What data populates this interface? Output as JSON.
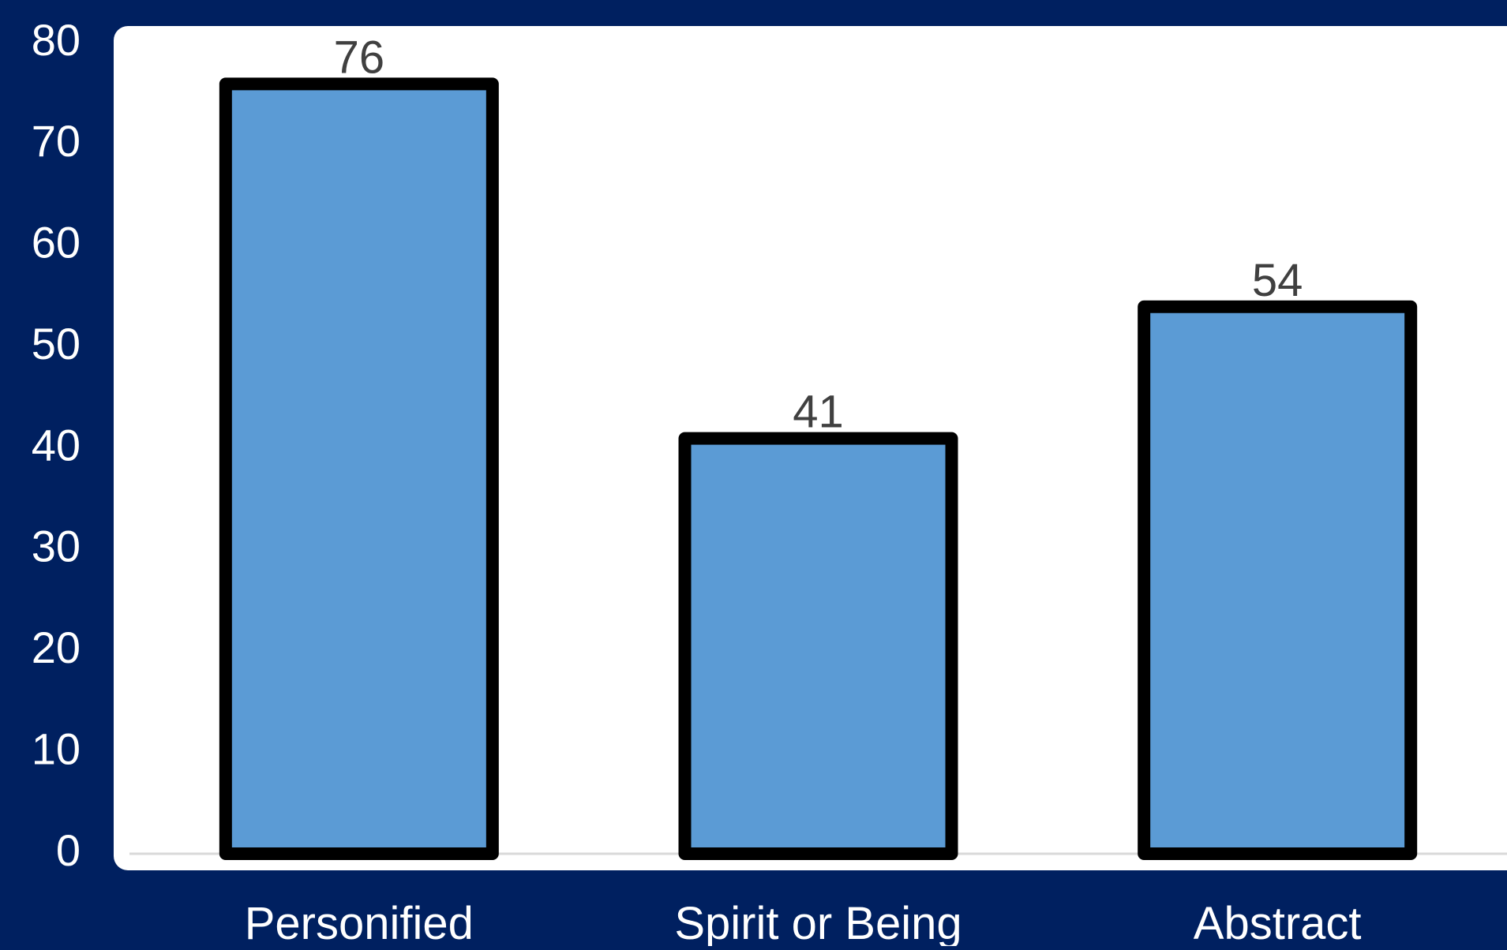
{
  "chart_data": {
    "type": "bar",
    "title": "",
    "xlabel": "",
    "ylabel": "",
    "categories": [
      "Personified",
      "Spirit or Being",
      "Abstract"
    ],
    "values": [
      76,
      41,
      54
    ],
    "data_labels": [
      "76",
      "41",
      "54"
    ],
    "ylim": [
      0,
      80
    ],
    "yticks": [
      0,
      10,
      20,
      30,
      40,
      50,
      60,
      70,
      80
    ],
    "ytick_labels": [
      "0",
      "10",
      "20",
      "30",
      "40",
      "50",
      "60",
      "70",
      "80"
    ],
    "grid": false,
    "legend": "none"
  },
  "colors": {
    "background": "#002060",
    "plot_area": "#FFFFFF",
    "bar_fill": "#5B9BD5",
    "bar_stroke": "#000000",
    "axis_text": "#FFFFFF",
    "data_label_text": "#404040",
    "baseline": "#D9D9D9"
  }
}
